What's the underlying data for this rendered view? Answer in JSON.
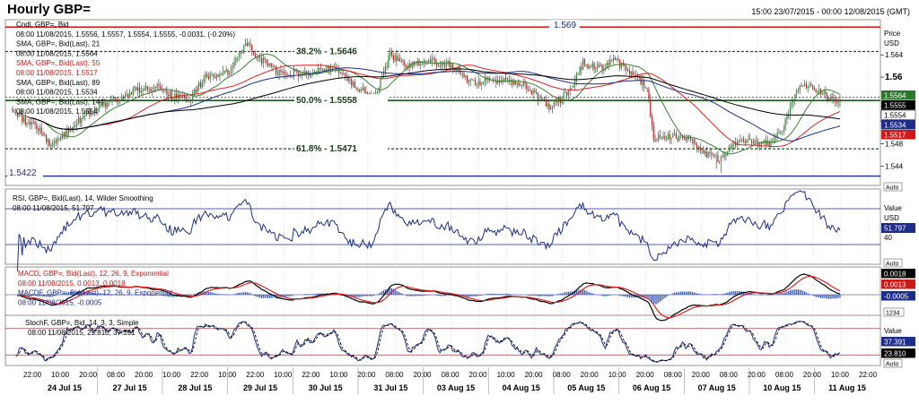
{
  "header": {
    "title": "Hourly GBP=",
    "range": "15:00 23/07/2015 - 00:00 12/08/2015 (GMT)"
  },
  "colors": {
    "up": "#1f9a2b",
    "down": "#cc1a1a",
    "sma21": "#3a7d2e",
    "sma55": "#e02020",
    "sma89": "#1c2d8a",
    "sma144": "#000000",
    "rsi": "#1c2d8a",
    "macd": "#000000",
    "signal": "#e02020",
    "hist": "#2a4fb0",
    "stoch": "#1c2d8a"
  },
  "price_panel": {
    "legend": [
      "Cndl, GBP=, Bid",
      "08:00 11/08/2015, 1.5556, 1.5557, 1.5554, 1.5555, -0.0031, (-0.20%)",
      "SMA, GBP=, Bid(Last), 21",
      "08:00 11/08/2015, 1.5564",
      "SMA, GBP=, Bid(Last), 55",
      "08:00 11/08/2015, 1.5517",
      "SMA, GBP=, Bid(Last), 89",
      "08:00 11/08/2015, 1.5534",
      "SMA, GBP=, Bid(Last), 144",
      "08:00 11/08/2015, 1.5554"
    ],
    "axis_title": [
      "Price",
      "USD"
    ],
    "ticks": [
      "1.564",
      "1.56",
      "1.552",
      "1.548",
      "1.544"
    ],
    "hlines": [
      {
        "label": "1.569",
        "price": 1.569
      },
      {
        "label": "1.5422",
        "price": 1.5422
      }
    ],
    "fib": [
      {
        "label": "38.2% - 1.5646",
        "price": 1.5646
      },
      {
        "label": "50.0% - 1.5558",
        "price": 1.5558
      },
      {
        "label": "61.8% - 1.5471",
        "price": 1.5471
      }
    ],
    "extra_dotted": 1.5564,
    "boxes": [
      {
        "label": "1.5564"
      },
      {
        "label": "1.5555"
      },
      {
        "label": "1.5554"
      },
      {
        "label": "1.5534"
      },
      {
        "label": "1.5517"
      }
    ],
    "auto": "Auto"
  },
  "rsi_panel": {
    "legend": [
      "RSI, GBP=, Bid(Last), 14, Wilder Smoothing",
      "08:00 11/08/2015, 51.797"
    ],
    "axis_title": [
      "Value",
      "USD"
    ],
    "tick": "40",
    "box": "51.797",
    "auto": "Auto"
  },
  "macd_panel": {
    "legend": [
      "MACD, GBP=, Bid(Last), 12, 26, 9, Exponential",
      "08:00 11/08/2015, 0.0013, 0.0018",
      "MACDF, GBP=, Bid(Last), 12, 26, 9, Exponential",
      "08:00 11/08/2015, -0.0005"
    ],
    "boxes": [
      "0.0018",
      "0.0013",
      "-0.0005"
    ],
    "footer": "1234",
    "auto": "Auto"
  },
  "stoch_panel": {
    "legend": [
      "StochF, GBP=, Bid, 14, 3, 3, Simple",
      "08:00 11/08/2015, 23.810, 37.391"
    ],
    "axis_title": [
      "Value",
      "USD"
    ],
    "boxes": [
      "37.391",
      "23.810"
    ],
    "auto": "Auto"
  },
  "x_axis": {
    "times": [
      "22:00",
      "10:00",
      "20:00",
      "08:00",
      "20:00",
      "10:00",
      "22:00",
      "10:00",
      "22:00",
      "10:00",
      "22:00",
      "10:00",
      "20:00",
      "08:00",
      "20:00",
      "08:00",
      "20:00",
      "10:00",
      "20:00",
      "08:00",
      "20:00",
      "10:00",
      "20:00",
      "08:00",
      "20:00",
      "08:00",
      "20:00",
      "08:00",
      "20:00",
      "10:00",
      "22:00"
    ],
    "dates": [
      "24 Jul 15",
      "27 Jul 15",
      "28 Jul 15",
      "29 Jul 15",
      "30 Jul 15",
      "31 Jul 15",
      "03 Aug 15",
      "04 Aug 15",
      "05 Aug 15",
      "06 Aug 15",
      "07 Aug 15",
      "10 Aug 15",
      "11 Aug 15"
    ]
  },
  "chart_data": {
    "type": "candlestick",
    "title": "Hourly GBP=",
    "y_unit": "USD",
    "ylim": [
      1.541,
      1.57
    ],
    "anchors": [
      [
        0,
        1.5535
      ],
      [
        15,
        1.551
      ],
      [
        25,
        1.5475
      ],
      [
        35,
        1.5505
      ],
      [
        45,
        1.553
      ],
      [
        60,
        1.5555
      ],
      [
        75,
        1.5575
      ],
      [
        90,
        1.558
      ],
      [
        100,
        1.5565
      ],
      [
        110,
        1.556
      ],
      [
        120,
        1.56
      ],
      [
        135,
        1.561
      ],
      [
        145,
        1.566
      ],
      [
        155,
        1.563
      ],
      [
        165,
        1.561
      ],
      [
        180,
        1.5605
      ],
      [
        200,
        1.5615
      ],
      [
        215,
        1.558
      ],
      [
        225,
        1.556
      ],
      [
        235,
        1.564
      ],
      [
        245,
        1.562
      ],
      [
        260,
        1.563
      ],
      [
        275,
        1.562
      ],
      [
        285,
        1.559
      ],
      [
        300,
        1.5595
      ],
      [
        315,
        1.559
      ],
      [
        325,
        1.557
      ],
      [
        335,
        1.5545
      ],
      [
        345,
        1.557
      ],
      [
        355,
        1.5625
      ],
      [
        365,
        1.5615
      ],
      [
        375,
        1.563
      ],
      [
        385,
        1.561
      ],
      [
        395,
        1.558
      ],
      [
        399,
        1.5485
      ],
      [
        405,
        1.5495
      ],
      [
        420,
        1.549
      ],
      [
        430,
        1.5465
      ],
      [
        440,
        1.545
      ],
      [
        450,
        1.548
      ],
      [
        460,
        1.5485
      ],
      [
        470,
        1.548
      ],
      [
        480,
        1.551
      ],
      [
        490,
        1.559
      ],
      [
        500,
        1.5575
      ],
      [
        510,
        1.556
      ],
      [
        515,
        1.5555
      ]
    ],
    "sma": {
      "sma21_last": 1.5564,
      "sma55_last": 1.5517,
      "sma89_last": 1.5534,
      "sma144_last": 1.5554
    },
    "rsi_last": 51.797,
    "macd": {
      "macd": 0.0013,
      "signal": 0.0018,
      "hist": -0.0005
    },
    "stoch": {
      "k": 23.81,
      "d": 37.391
    }
  }
}
